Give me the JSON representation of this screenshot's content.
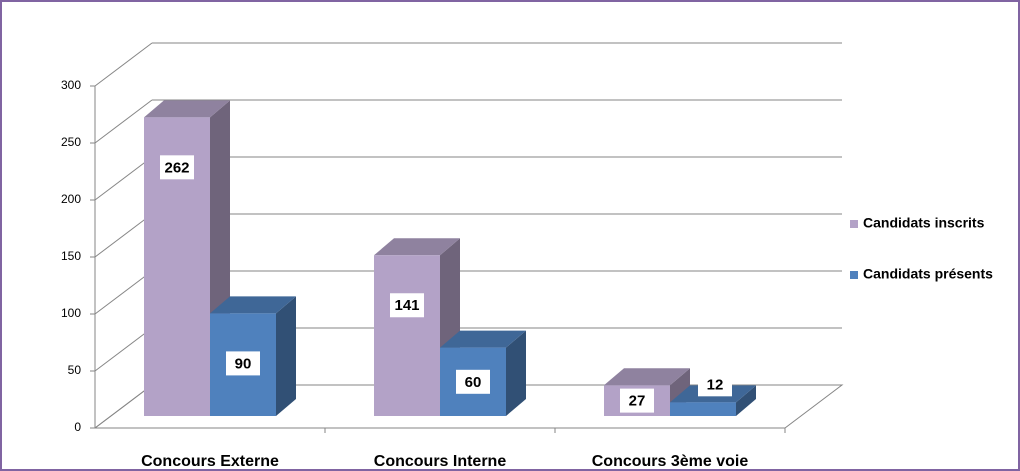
{
  "chart_data": {
    "type": "bar3d",
    "categories": [
      "Concours Externe",
      "Concours Interne",
      "Concours 3ème voie"
    ],
    "series": [
      {
        "name": "Candidats inscrits",
        "color": "#b3a2c7",
        "values": [
          262,
          141,
          27
        ]
      },
      {
        "name": "Candidats présents",
        "color": "#4f81bd",
        "values": [
          90,
          60,
          12
        ]
      }
    ],
    "ylim": [
      0,
      300
    ],
    "yticks": [
      0,
      50,
      100,
      150,
      200,
      250,
      300
    ],
    "grid": true,
    "legend": "right"
  }
}
